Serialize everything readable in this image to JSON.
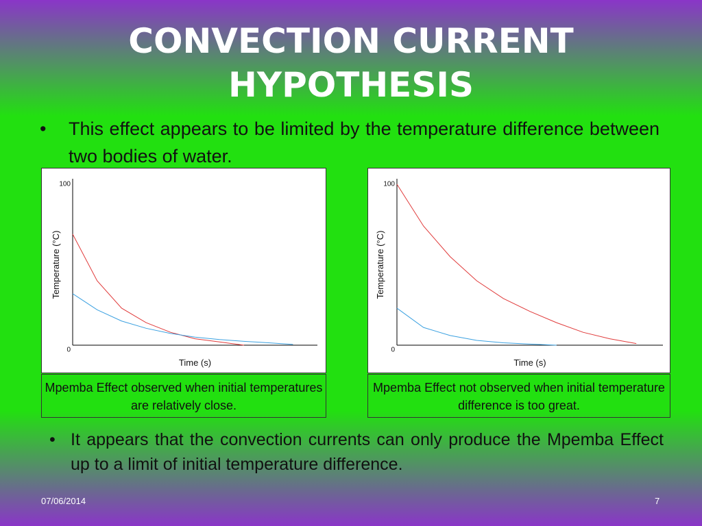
{
  "title": "CONVECTION CURRENT HYPOTHESIS",
  "bullets": [
    "This effect appears to be limited by the temperature difference between two bodies of water.",
    "It appears that the convection currents can only produce the Mpemba Effect up to a limit of initial temperature difference."
  ],
  "chart_data": [
    {
      "type": "line",
      "x_label": "Time (s)",
      "y_label": "Temperature (°C)",
      "caption": "Mpemba Effect observed when initial temperatures are relatively close.",
      "x": [
        0,
        10,
        20,
        30,
        40,
        50,
        60,
        70,
        80,
        90
      ],
      "xlim": [
        0,
        100
      ],
      "ylim": [
        0,
        100
      ],
      "yticks": [
        0,
        100
      ],
      "series": [
        {
          "color": "#e03a3a",
          "values": [
            69,
            40,
            23,
            14,
            8,
            4,
            2,
            0,
            null,
            null
          ]
        },
        {
          "color": "#3aa0e0",
          "values": [
            32,
            22,
            15,
            10.5,
            7.3,
            5,
            3.5,
            2.4,
            1.5,
            0.5
          ]
        }
      ]
    },
    {
      "type": "line",
      "x_label": "Time (s)",
      "y_label": "Temperature (°C)",
      "caption": "Mpemba Effect not observed when initial temperature difference is too great.",
      "x": [
        0,
        10,
        20,
        30,
        40,
        50,
        60,
        70,
        80,
        90
      ],
      "xlim": [
        0,
        100
      ],
      "ylim": [
        0,
        100
      ],
      "yticks": [
        0,
        100
      ],
      "series": [
        {
          "color": "#e03a3a",
          "values": [
            100,
            74,
            55,
            40,
            29,
            21,
            14,
            8,
            4,
            1
          ]
        },
        {
          "color": "#3aa0e0",
          "values": [
            23,
            11,
            6,
            3,
            1.5,
            0.7,
            0,
            null,
            null,
            null
          ]
        }
      ]
    }
  ],
  "footer": {
    "date": "07/06/2014",
    "page": "7"
  }
}
